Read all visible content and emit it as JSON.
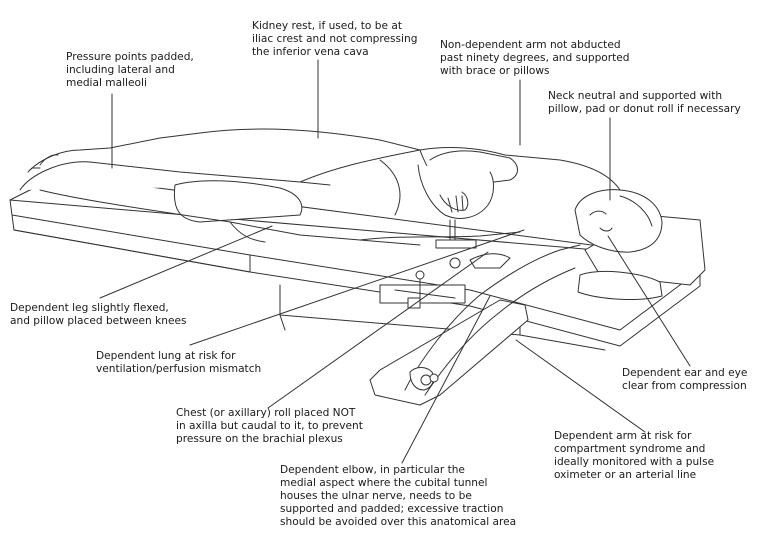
{
  "labels": {
    "pressure_points": [
      "Pressure points padded,",
      "including lateral and",
      "medial malleoli"
    ],
    "kidney_rest": [
      "Kidney rest, if used, to be at",
      "iliac crest and not compressing",
      "the inferior vena cava"
    ],
    "nondependent_arm": [
      "Non-dependent arm not abducted",
      "past ninety degrees, and supported",
      "with brace or pillows"
    ],
    "neck_neutral": [
      "Neck neutral and supported with",
      "pillow, pad or donut roll if necessary"
    ],
    "dependent_leg": [
      "Dependent leg slightly flexed,",
      "and pillow placed between knees"
    ],
    "dependent_lung": [
      "Dependent lung at risk for",
      "ventilation/perfusion mismatch"
    ],
    "dependent_ear": [
      "Dependent ear and eye",
      "clear from compression"
    ],
    "chest_roll": [
      "Chest (or axillary) roll placed NOT",
      "in axilla but caudal to it, to prevent",
      "pressure on the brachial plexus"
    ],
    "dependent_arm": [
      "Dependent arm at risk for",
      "compartment syndrome and",
      "ideally monitored with a pulse",
      "oximeter or an arterial line"
    ],
    "dependent_elbow": [
      "Dependent elbow, in particular the",
      "medial aspect where the cubital tunnel",
      "houses the ulnar nerve, needs to be",
      "supported and padded; excessive traction",
      "should be avoided over this anatomical area"
    ]
  },
  "colors": {
    "leader_line": "#1f3f88",
    "drawing_line": "#333333",
    "text": "#1a1a1a"
  }
}
